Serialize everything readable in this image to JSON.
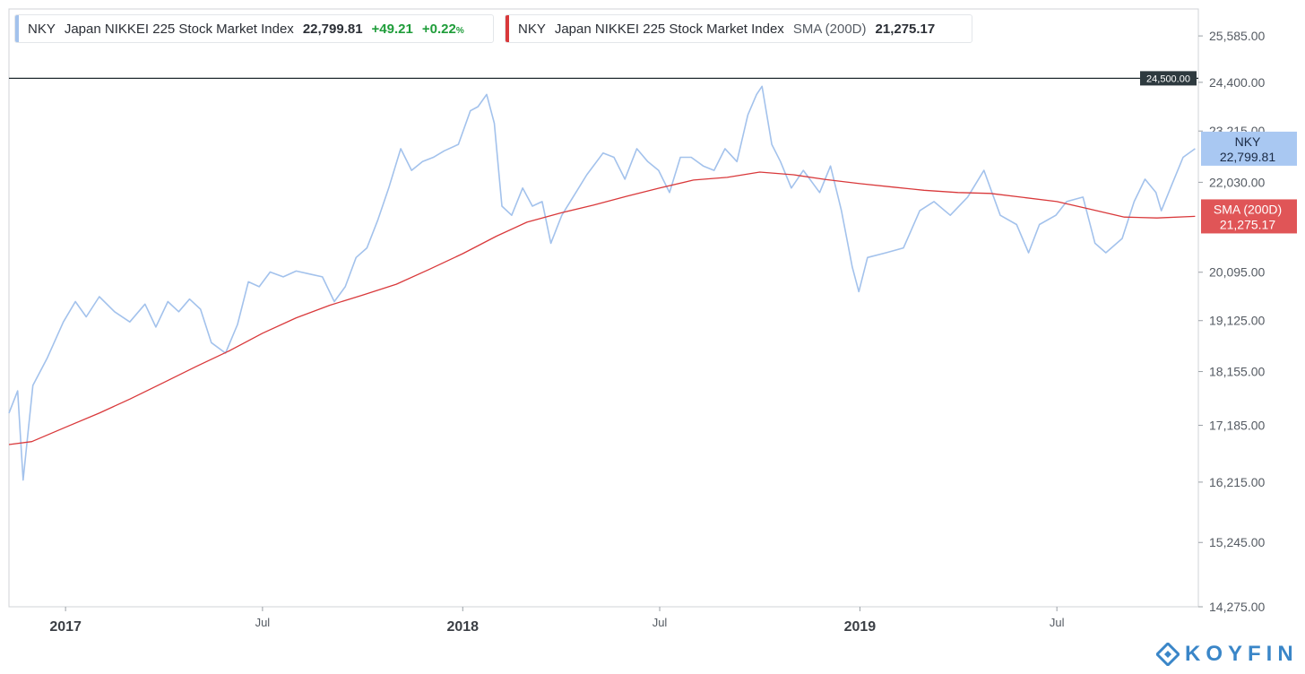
{
  "legend_nky": {
    "ticker": "NKY",
    "name": "Japan NIKKEI 225 Stock Market Index",
    "value": "22,799.81",
    "change": "+49.21",
    "change_pct": "+0.22",
    "pct_sign": "%"
  },
  "legend_sma": {
    "ticker": "NKY",
    "name": "Japan NIKKEI 225 Stock Market Index",
    "indicator": "SMA (200D)",
    "value": "21,275.17"
  },
  "logo": {
    "text": "KOYFIN"
  },
  "colors": {
    "price_line": "#a3c2ec",
    "sma_line": "#d9393b",
    "ref_line": "#1f2a2e",
    "logo": "#3a86c8"
  },
  "chart_data": {
    "type": "line",
    "y_scale": "log",
    "ylim": [
      14275,
      26300
    ],
    "y_ticks": [
      {
        "value": 25585,
        "label": "25,585.00"
      },
      {
        "value": 24400,
        "label": "24,400.00"
      },
      {
        "value": 23215,
        "label": "23,215.00"
      },
      {
        "value": 22030,
        "label": "22,030.00"
      },
      {
        "value": 20095,
        "label": "20,095.00"
      },
      {
        "value": 19125,
        "label": "19,125.00"
      },
      {
        "value": 18155,
        "label": "18,155.00"
      },
      {
        "value": 17185,
        "label": "17,185.00"
      },
      {
        "value": 16215,
        "label": "16,215.00"
      },
      {
        "value": 15245,
        "label": "15,245.00"
      },
      {
        "value": 14275,
        "label": "14,275.00"
      }
    ],
    "xlim": [
      "2016-11-10",
      "2019-11-08"
    ],
    "x_ticks": [
      {
        "date": "2017-01-01",
        "label": "2017",
        "major": true
      },
      {
        "date": "2017-07-01",
        "label": "Jul",
        "major": false
      },
      {
        "date": "2018-01-01",
        "label": "2018",
        "major": true
      },
      {
        "date": "2018-07-01",
        "label": "Jul",
        "major": false
      },
      {
        "date": "2019-01-01",
        "label": "2019",
        "major": true
      },
      {
        "date": "2019-07-01",
        "label": "Jul",
        "major": false
      }
    ],
    "reference_line": {
      "value": 24500,
      "label": "24,500.00"
    },
    "series": [
      {
        "name": "NKY",
        "last_label": "22,799.81",
        "points": [
          [
            "2016-11-10",
            17400
          ],
          [
            "2016-11-18",
            17800
          ],
          [
            "2016-11-23",
            16250
          ],
          [
            "2016-12-02",
            17900
          ],
          [
            "2016-12-15",
            18400
          ],
          [
            "2016-12-30",
            19100
          ],
          [
            "2017-01-10",
            19500
          ],
          [
            "2017-01-20",
            19200
          ],
          [
            "2017-02-01",
            19600
          ],
          [
            "2017-02-15",
            19300
          ],
          [
            "2017-03-01",
            19100
          ],
          [
            "2017-03-15",
            19450
          ],
          [
            "2017-03-25",
            19000
          ],
          [
            "2017-04-05",
            19500
          ],
          [
            "2017-04-15",
            19300
          ],
          [
            "2017-04-25",
            19550
          ],
          [
            "2017-05-05",
            19350
          ],
          [
            "2017-05-15",
            18700
          ],
          [
            "2017-05-28",
            18500
          ],
          [
            "2017-06-08",
            19050
          ],
          [
            "2017-06-18",
            19900
          ],
          [
            "2017-06-28",
            19800
          ],
          [
            "2017-07-08",
            20100
          ],
          [
            "2017-07-20",
            20000
          ],
          [
            "2017-08-01",
            20120
          ],
          [
            "2017-08-15",
            20050
          ],
          [
            "2017-08-25",
            20000
          ],
          [
            "2017-09-05",
            19500
          ],
          [
            "2017-09-15",
            19800
          ],
          [
            "2017-09-25",
            20400
          ],
          [
            "2017-10-05",
            20600
          ],
          [
            "2017-10-15",
            21200
          ],
          [
            "2017-10-25",
            21900
          ],
          [
            "2017-11-05",
            22800
          ],
          [
            "2017-11-15",
            22300
          ],
          [
            "2017-11-25",
            22500
          ],
          [
            "2017-12-05",
            22600
          ],
          [
            "2017-12-15",
            22750
          ],
          [
            "2017-12-28",
            22900
          ],
          [
            "2018-01-08",
            23700
          ],
          [
            "2018-01-15",
            23800
          ],
          [
            "2018-01-23",
            24100
          ],
          [
            "2018-01-30",
            23400
          ],
          [
            "2018-02-06",
            21500
          ],
          [
            "2018-02-15",
            21300
          ],
          [
            "2018-02-25",
            21900
          ],
          [
            "2018-03-06",
            21500
          ],
          [
            "2018-03-15",
            21600
          ],
          [
            "2018-03-23",
            20700
          ],
          [
            "2018-04-02",
            21300
          ],
          [
            "2018-04-15",
            21800
          ],
          [
            "2018-04-25",
            22200
          ],
          [
            "2018-05-10",
            22700
          ],
          [
            "2018-05-20",
            22600
          ],
          [
            "2018-05-30",
            22100
          ],
          [
            "2018-06-10",
            22800
          ],
          [
            "2018-06-20",
            22500
          ],
          [
            "2018-06-30",
            22300
          ],
          [
            "2018-07-10",
            21800
          ],
          [
            "2018-07-20",
            22600
          ],
          [
            "2018-07-30",
            22600
          ],
          [
            "2018-08-10",
            22400
          ],
          [
            "2018-08-20",
            22300
          ],
          [
            "2018-08-30",
            22800
          ],
          [
            "2018-09-10",
            22500
          ],
          [
            "2018-09-20",
            23600
          ],
          [
            "2018-09-28",
            24100
          ],
          [
            "2018-10-03",
            24300
          ],
          [
            "2018-10-12",
            22900
          ],
          [
            "2018-10-20",
            22500
          ],
          [
            "2018-10-30",
            21900
          ],
          [
            "2018-11-10",
            22300
          ],
          [
            "2018-11-25",
            21800
          ],
          [
            "2018-12-05",
            22400
          ],
          [
            "2018-12-15",
            21400
          ],
          [
            "2018-12-25",
            20200
          ],
          [
            "2018-12-31",
            19700
          ],
          [
            "2019-01-08",
            20400
          ],
          [
            "2019-01-25",
            20500
          ],
          [
            "2019-02-10",
            20600
          ],
          [
            "2019-02-25",
            21400
          ],
          [
            "2019-03-10",
            21600
          ],
          [
            "2019-03-25",
            21300
          ],
          [
            "2019-04-10",
            21700
          ],
          [
            "2019-04-25",
            22300
          ],
          [
            "2019-05-10",
            21300
          ],
          [
            "2019-05-25",
            21100
          ],
          [
            "2019-06-05",
            20500
          ],
          [
            "2019-06-15",
            21100
          ],
          [
            "2019-06-30",
            21300
          ],
          [
            "2019-07-10",
            21600
          ],
          [
            "2019-07-25",
            21700
          ],
          [
            "2019-08-05",
            20700
          ],
          [
            "2019-08-15",
            20500
          ],
          [
            "2019-08-30",
            20800
          ],
          [
            "2019-09-10",
            21600
          ],
          [
            "2019-09-20",
            22100
          ],
          [
            "2019-09-30",
            21800
          ],
          [
            "2019-10-05",
            21400
          ],
          [
            "2019-10-15",
            22000
          ],
          [
            "2019-10-25",
            22600
          ],
          [
            "2019-11-05",
            22799.81
          ]
        ]
      },
      {
        "name": "SMA (200D)",
        "last_label": "21,275.17",
        "points": [
          [
            "2016-11-10",
            16850
          ],
          [
            "2016-12-01",
            16900
          ],
          [
            "2017-01-01",
            17150
          ],
          [
            "2017-02-01",
            17400
          ],
          [
            "2017-03-01",
            17650
          ],
          [
            "2017-04-01",
            17950
          ],
          [
            "2017-05-01",
            18250
          ],
          [
            "2017-06-01",
            18550
          ],
          [
            "2017-07-01",
            18880
          ],
          [
            "2017-08-01",
            19180
          ],
          [
            "2017-09-01",
            19430
          ],
          [
            "2017-10-01",
            19630
          ],
          [
            "2017-11-01",
            19850
          ],
          [
            "2017-12-01",
            20150
          ],
          [
            "2018-01-01",
            20480
          ],
          [
            "2018-02-01",
            20850
          ],
          [
            "2018-03-01",
            21150
          ],
          [
            "2018-04-01",
            21350
          ],
          [
            "2018-05-01",
            21520
          ],
          [
            "2018-06-01",
            21720
          ],
          [
            "2018-07-01",
            21900
          ],
          [
            "2018-08-01",
            22080
          ],
          [
            "2018-09-01",
            22140
          ],
          [
            "2018-10-01",
            22260
          ],
          [
            "2018-11-01",
            22200
          ],
          [
            "2018-12-01",
            22090
          ],
          [
            "2019-01-01",
            22000
          ],
          [
            "2019-02-01",
            21920
          ],
          [
            "2019-03-01",
            21850
          ],
          [
            "2019-04-01",
            21800
          ],
          [
            "2019-05-01",
            21780
          ],
          [
            "2019-06-01",
            21690
          ],
          [
            "2019-07-01",
            21600
          ],
          [
            "2019-08-01",
            21430
          ],
          [
            "2019-09-01",
            21260
          ],
          [
            "2019-10-01",
            21240
          ],
          [
            "2019-11-05",
            21275.17
          ]
        ]
      }
    ]
  }
}
